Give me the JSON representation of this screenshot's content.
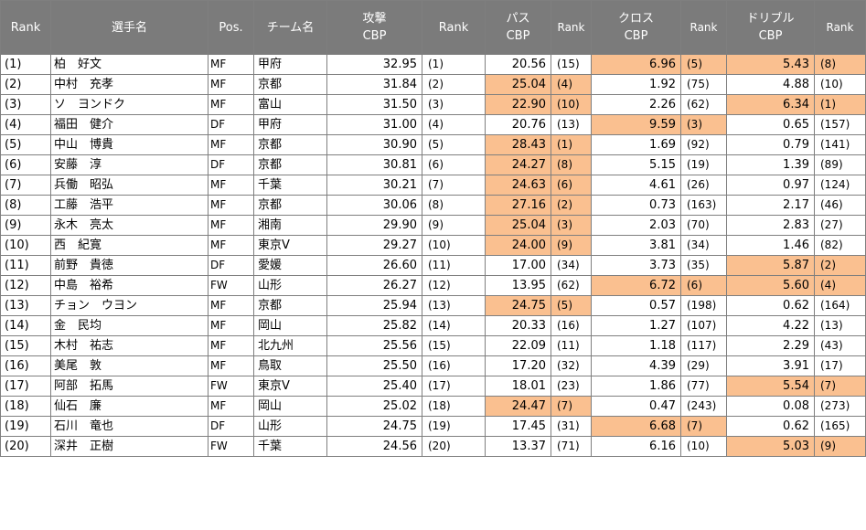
{
  "headers": {
    "rank": "Rank",
    "name": "選手名",
    "pos": "Pos.",
    "team": "チーム名",
    "attack": [
      "攻撃",
      "CBP"
    ],
    "attack_rank": "Rank",
    "pass": [
      "パス",
      "CBP"
    ],
    "pass_rank": "Rank",
    "cross": [
      "クロス",
      "CBP"
    ],
    "cross_rank": "Rank",
    "dribble": [
      "ドリブル",
      "CBP"
    ],
    "dribble_rank": "Rank"
  },
  "highlight_color": "#fac090",
  "header_color": "#7b7b7b",
  "rows": [
    {
      "rank": "(1)",
      "name": "柏　好文",
      "pos": "MF",
      "team": "甲府",
      "attack": "32.95",
      "attack_rank": "(1)",
      "pass": "20.56",
      "pass_rank": "(15)",
      "pass_hl": false,
      "cross": "6.96",
      "cross_rank": "(5)",
      "cross_hl": true,
      "dribble": "5.43",
      "dribble_rank": "(8)",
      "dribble_hl": true
    },
    {
      "rank": "(2)",
      "name": "中村　充孝",
      "pos": "MF",
      "team": "京都",
      "attack": "31.84",
      "attack_rank": "(2)",
      "pass": "25.04",
      "pass_rank": "(4)",
      "pass_hl": true,
      "cross": "1.92",
      "cross_rank": "(75)",
      "cross_hl": false,
      "dribble": "4.88",
      "dribble_rank": "(10)",
      "dribble_hl": false
    },
    {
      "rank": "(3)",
      "name": "ソ　ヨンドク",
      "pos": "MF",
      "team": "富山",
      "attack": "31.50",
      "attack_rank": "(3)",
      "pass": "22.90",
      "pass_rank": "(10)",
      "pass_hl": true,
      "cross": "2.26",
      "cross_rank": "(62)",
      "cross_hl": false,
      "dribble": "6.34",
      "dribble_rank": "(1)",
      "dribble_hl": true
    },
    {
      "rank": "(4)",
      "name": "福田　健介",
      "pos": "DF",
      "team": "甲府",
      "attack": "31.00",
      "attack_rank": "(4)",
      "pass": "20.76",
      "pass_rank": "(13)",
      "pass_hl": false,
      "cross": "9.59",
      "cross_rank": "(3)",
      "cross_hl": true,
      "dribble": "0.65",
      "dribble_rank": "(157)",
      "dribble_hl": false
    },
    {
      "rank": "(5)",
      "name": "中山　博貴",
      "pos": "MF",
      "team": "京都",
      "attack": "30.90",
      "attack_rank": "(5)",
      "pass": "28.43",
      "pass_rank": "(1)",
      "pass_hl": true,
      "cross": "1.69",
      "cross_rank": "(92)",
      "cross_hl": false,
      "dribble": "0.79",
      "dribble_rank": "(141)",
      "dribble_hl": false
    },
    {
      "rank": "(6)",
      "name": "安藤　淳",
      "pos": "DF",
      "team": "京都",
      "attack": "30.81",
      "attack_rank": "(6)",
      "pass": "24.27",
      "pass_rank": "(8)",
      "pass_hl": true,
      "cross": "5.15",
      "cross_rank": "(19)",
      "cross_hl": false,
      "dribble": "1.39",
      "dribble_rank": "(89)",
      "dribble_hl": false
    },
    {
      "rank": "(7)",
      "name": "兵働　昭弘",
      "pos": "MF",
      "team": "千葉",
      "attack": "30.21",
      "attack_rank": "(7)",
      "pass": "24.63",
      "pass_rank": "(6)",
      "pass_hl": true,
      "cross": "4.61",
      "cross_rank": "(26)",
      "cross_hl": false,
      "dribble": "0.97",
      "dribble_rank": "(124)",
      "dribble_hl": false
    },
    {
      "rank": "(8)",
      "name": "工藤　浩平",
      "pos": "MF",
      "team": "京都",
      "attack": "30.06",
      "attack_rank": "(8)",
      "pass": "27.16",
      "pass_rank": "(2)",
      "pass_hl": true,
      "cross": "0.73",
      "cross_rank": "(163)",
      "cross_hl": false,
      "dribble": "2.17",
      "dribble_rank": "(46)",
      "dribble_hl": false
    },
    {
      "rank": "(9)",
      "name": "永木　亮太",
      "pos": "MF",
      "team": "湘南",
      "attack": "29.90",
      "attack_rank": "(9)",
      "pass": "25.04",
      "pass_rank": "(3)",
      "pass_hl": true,
      "cross": "2.03",
      "cross_rank": "(70)",
      "cross_hl": false,
      "dribble": "2.83",
      "dribble_rank": "(27)",
      "dribble_hl": false
    },
    {
      "rank": "(10)",
      "name": "西　紀寛",
      "pos": "MF",
      "team": "東京V",
      "attack": "29.27",
      "attack_rank": "(10)",
      "pass": "24.00",
      "pass_rank": "(9)",
      "pass_hl": true,
      "cross": "3.81",
      "cross_rank": "(34)",
      "cross_hl": false,
      "dribble": "1.46",
      "dribble_rank": "(82)",
      "dribble_hl": false
    },
    {
      "rank": "(11)",
      "name": "前野　貴徳",
      "pos": "DF",
      "team": "愛媛",
      "attack": "26.60",
      "attack_rank": "(11)",
      "pass": "17.00",
      "pass_rank": "(34)",
      "pass_hl": false,
      "cross": "3.73",
      "cross_rank": "(35)",
      "cross_hl": false,
      "dribble": "5.87",
      "dribble_rank": "(2)",
      "dribble_hl": true
    },
    {
      "rank": "(12)",
      "name": "中島　裕希",
      "pos": "FW",
      "team": "山形",
      "attack": "26.27",
      "attack_rank": "(12)",
      "pass": "13.95",
      "pass_rank": "(62)",
      "pass_hl": false,
      "cross": "6.72",
      "cross_rank": "(6)",
      "cross_hl": true,
      "dribble": "5.60",
      "dribble_rank": "(4)",
      "dribble_hl": true
    },
    {
      "rank": "(13)",
      "name": "チョン　ウヨン",
      "pos": "MF",
      "team": "京都",
      "attack": "25.94",
      "attack_rank": "(13)",
      "pass": "24.75",
      "pass_rank": "(5)",
      "pass_hl": true,
      "cross": "0.57",
      "cross_rank": "(198)",
      "cross_hl": false,
      "dribble": "0.62",
      "dribble_rank": "(164)",
      "dribble_hl": false
    },
    {
      "rank": "(14)",
      "name": "金　民均",
      "pos": "MF",
      "team": "岡山",
      "attack": "25.82",
      "attack_rank": "(14)",
      "pass": "20.33",
      "pass_rank": "(16)",
      "pass_hl": false,
      "cross": "1.27",
      "cross_rank": "(107)",
      "cross_hl": false,
      "dribble": "4.22",
      "dribble_rank": "(13)",
      "dribble_hl": false
    },
    {
      "rank": "(15)",
      "name": "木村　祐志",
      "pos": "MF",
      "team": "北九州",
      "attack": "25.56",
      "attack_rank": "(15)",
      "pass": "22.09",
      "pass_rank": "(11)",
      "pass_hl": false,
      "cross": "1.18",
      "cross_rank": "(117)",
      "cross_hl": false,
      "dribble": "2.29",
      "dribble_rank": "(43)",
      "dribble_hl": false
    },
    {
      "rank": "(16)",
      "name": "美尾　敦",
      "pos": "MF",
      "team": "鳥取",
      "attack": "25.50",
      "attack_rank": "(16)",
      "pass": "17.20",
      "pass_rank": "(32)",
      "pass_hl": false,
      "cross": "4.39",
      "cross_rank": "(29)",
      "cross_hl": false,
      "dribble": "3.91",
      "dribble_rank": "(17)",
      "dribble_hl": false
    },
    {
      "rank": "(17)",
      "name": "阿部　拓馬",
      "pos": "FW",
      "team": "東京V",
      "attack": "25.40",
      "attack_rank": "(17)",
      "pass": "18.01",
      "pass_rank": "(23)",
      "pass_hl": false,
      "cross": "1.86",
      "cross_rank": "(77)",
      "cross_hl": false,
      "dribble": "5.54",
      "dribble_rank": "(7)",
      "dribble_hl": true
    },
    {
      "rank": "(18)",
      "name": "仙石　廉",
      "pos": "MF",
      "team": "岡山",
      "attack": "25.02",
      "attack_rank": "(18)",
      "pass": "24.47",
      "pass_rank": "(7)",
      "pass_hl": true,
      "cross": "0.47",
      "cross_rank": "(243)",
      "cross_hl": false,
      "dribble": "0.08",
      "dribble_rank": "(273)",
      "dribble_hl": false
    },
    {
      "rank": "(19)",
      "name": "石川　竜也",
      "pos": "DF",
      "team": "山形",
      "attack": "24.75",
      "attack_rank": "(19)",
      "pass": "17.45",
      "pass_rank": "(31)",
      "pass_hl": false,
      "cross": "6.68",
      "cross_rank": "(7)",
      "cross_hl": true,
      "dribble": "0.62",
      "dribble_rank": "(165)",
      "dribble_hl": false
    },
    {
      "rank": "(20)",
      "name": "深井　正樹",
      "pos": "FW",
      "team": "千葉",
      "attack": "24.56",
      "attack_rank": "(20)",
      "pass": "13.37",
      "pass_rank": "(71)",
      "pass_hl": false,
      "cross": "6.16",
      "cross_rank": "(10)",
      "cross_hl": false,
      "dribble": "5.03",
      "dribble_rank": "(9)",
      "dribble_hl": true
    }
  ]
}
